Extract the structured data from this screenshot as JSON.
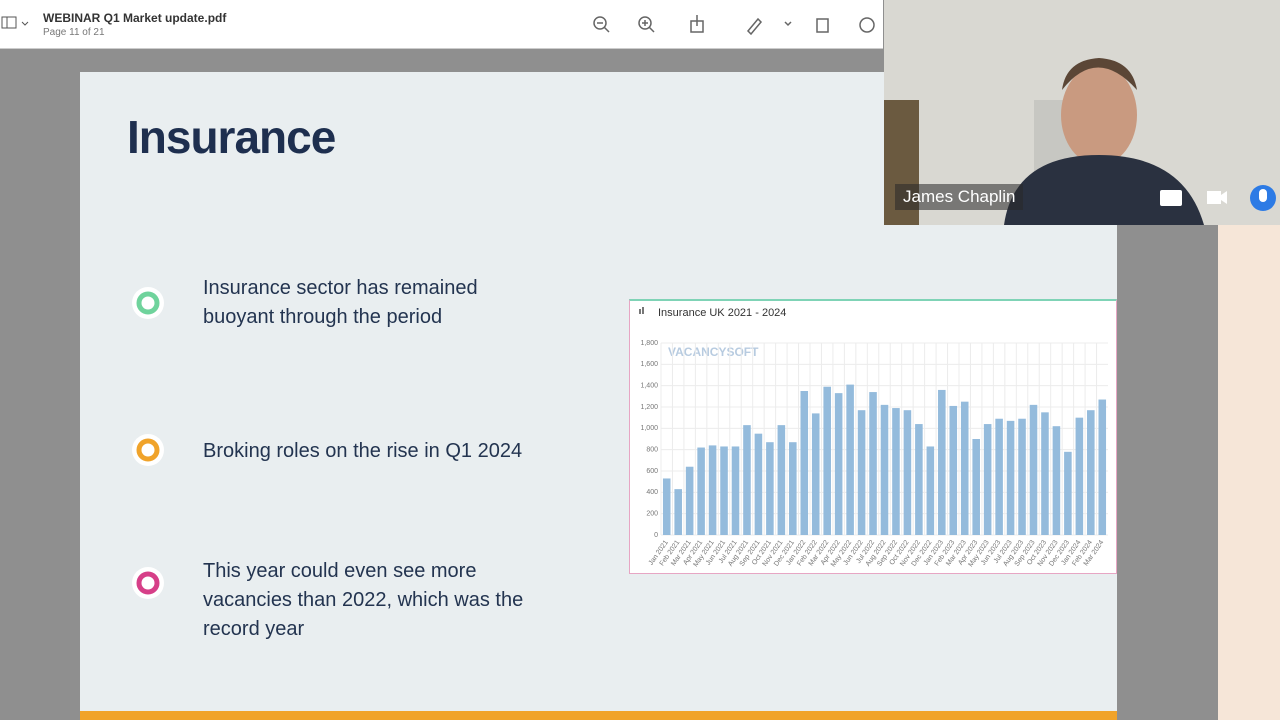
{
  "toolbar": {
    "filename": "WEBINAR Q1 Market update.pdf",
    "page": "Page 11 of 21"
  },
  "slide": {
    "title": "Insurance",
    "bullets": [
      "Insurance sector has remained buoyant through the period",
      "Broking roles on the rise in Q1 2024",
      "This year could even see more vacancies than 2022, which was the record year"
    ]
  },
  "video": {
    "name": "James Chaplin"
  },
  "chart_data": {
    "type": "bar",
    "title": "Insurance UK 2021 - 2024",
    "watermark": "VACANCYSOFT",
    "color": "#94bbdc",
    "grid": true,
    "categories": [
      "Jan 2021",
      "Feb 2021",
      "Mar 2021",
      "Apr 2021",
      "May 2021",
      "Jun 2021",
      "Jul 2021",
      "Aug 2021",
      "Sep 2021",
      "Oct 2021",
      "Nov 2021",
      "Dec 2021",
      "Jan 2022",
      "Feb 2022",
      "Mar 2022",
      "Apr 2022",
      "May 2022",
      "Jun 2022",
      "Jul 2022",
      "Aug 2022",
      "Sep 2022",
      "Oct 2022",
      "Nov 2022",
      "Dec 2022",
      "Jan 2023",
      "Feb 2023",
      "Mar 2023",
      "Apr 2023",
      "May 2023",
      "Jun 2023",
      "Jul 2023",
      "Aug 2023",
      "Sep 2023",
      "Oct 2023",
      "Nov 2023",
      "Dec 2023",
      "Jan 2024",
      "Feb 2024",
      "Mar 2024"
    ],
    "values": [
      530,
      430,
      640,
      820,
      840,
      830,
      830,
      1030,
      950,
      870,
      1030,
      870,
      1350,
      1140,
      1390,
      1330,
      1410,
      1170,
      1340,
      1220,
      1190,
      1170,
      1040,
      830,
      1360,
      1210,
      1250,
      900,
      1040,
      1090,
      1070,
      1090,
      1220,
      1150,
      1020,
      780,
      1100,
      1170,
      1270
    ],
    "ylim": [
      0,
      1800
    ],
    "yticks": [
      0,
      200,
      400,
      600,
      800,
      {
        "value": 1000,
        "label": "1,000"
      },
      {
        "value": 1200,
        "label": "1,200"
      },
      {
        "value": 1400,
        "label": "1,400"
      },
      {
        "value": 1600,
        "label": "1,600"
      },
      {
        "value": 1800,
        "label": "1,800"
      }
    ]
  }
}
